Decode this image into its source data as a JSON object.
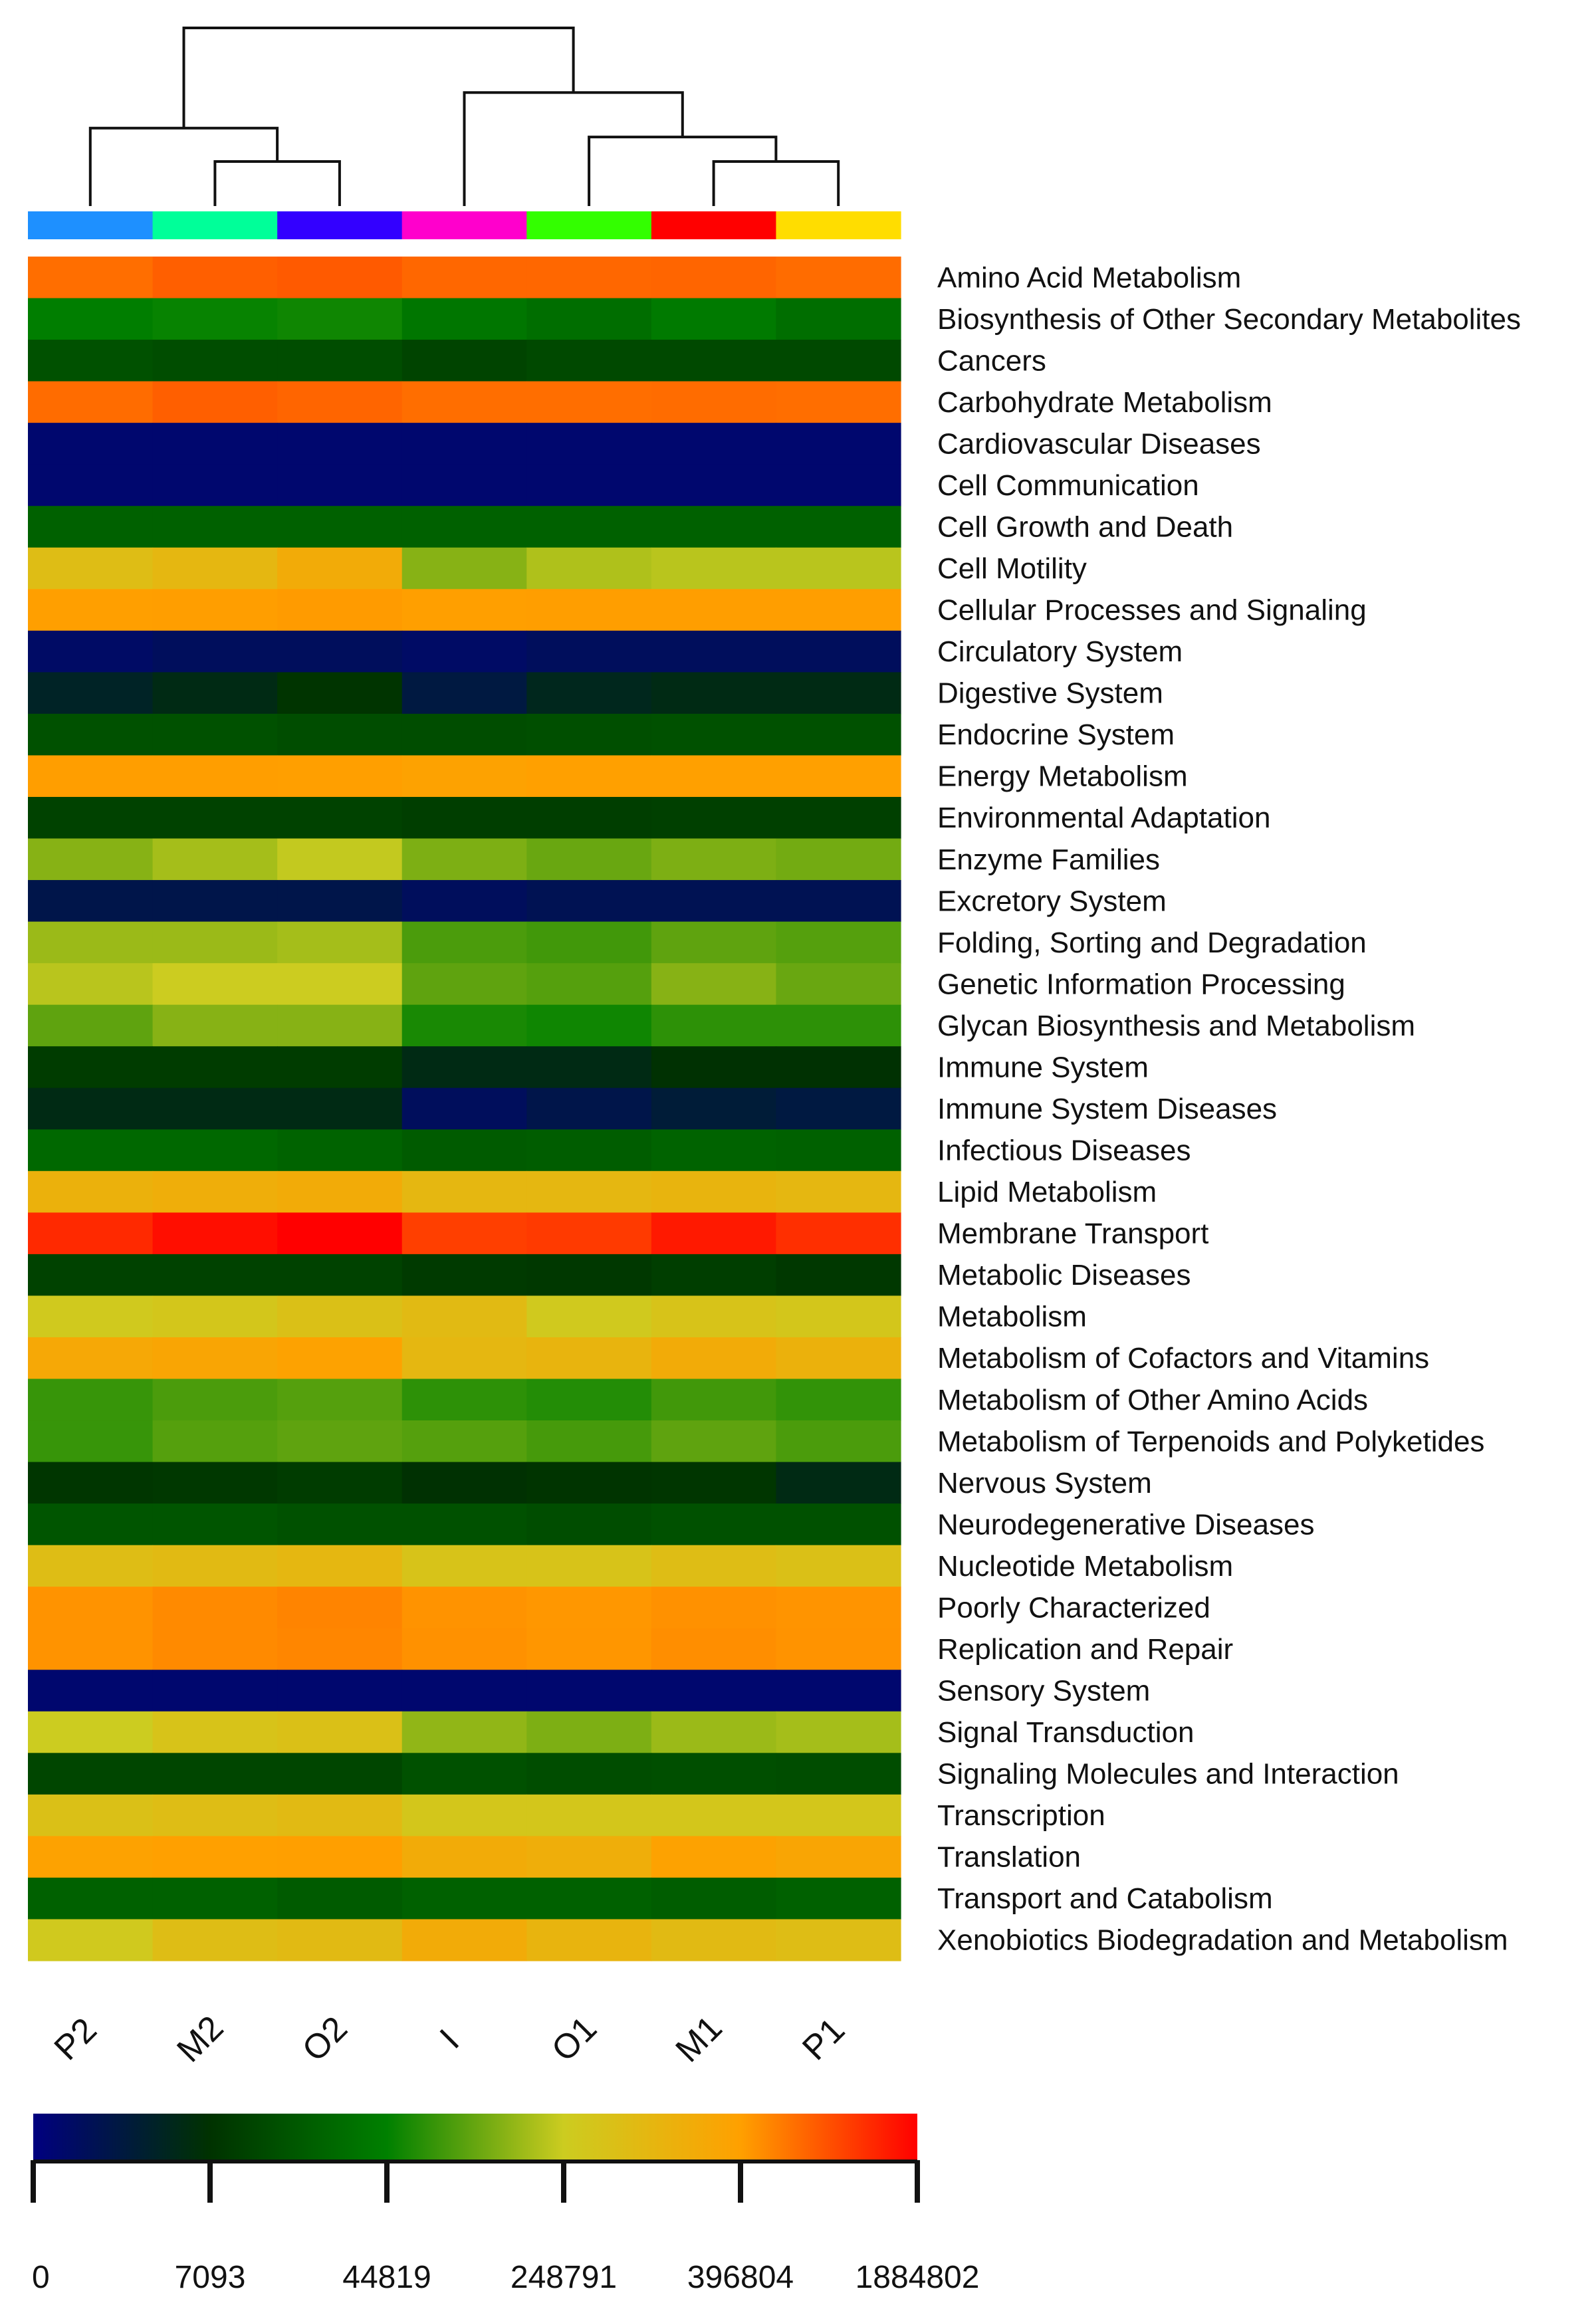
{
  "chart_data": {
    "type": "heatmap",
    "title": "",
    "xlabel": "",
    "ylabel": "",
    "columns": [
      "P2",
      "M2",
      "O2",
      "I",
      "O1",
      "M1",
      "P1"
    ],
    "column_group_colors": [
      "#1e90ff",
      "#00ff99",
      "#3300ff",
      "#ff00cc",
      "#33ff00",
      "#ff0000",
      "#ffdd00"
    ],
    "rows": [
      "Amino Acid Metabolism",
      "Biosynthesis of Other Secondary Metabolites",
      "Cancers",
      "Carbohydrate Metabolism",
      "Cardiovascular Diseases",
      "Cell Communication",
      "Cell Growth and Death",
      "Cell Motility",
      "Cellular Processes and Signaling",
      "Circulatory System",
      "Digestive System",
      "Endocrine System",
      "Energy Metabolism",
      "Environmental Adaptation",
      "Enzyme Families",
      "Excretory System",
      "Folding, Sorting and Degradation",
      "Genetic Information Processing",
      "Glycan Biosynthesis and Metabolism",
      "Immune System",
      "Immune System Diseases",
      "Infectious Diseases",
      "Lipid Metabolism",
      "Membrane Transport",
      "Metabolic Diseases",
      "Metabolism",
      "Metabolism of Cofactors and Vitamins",
      "Metabolism of Other Amino Acids",
      "Metabolism of Terpenoids and Polyketides",
      "Nervous System",
      "Neurodegenerative Diseases",
      "Nucleotide Metabolism",
      "Poorly Characterized",
      "Replication and Repair",
      "Sensory System",
      "Signal Transduction",
      "Signaling Molecules and Interaction",
      "Transcription",
      "Translation",
      "Transport and Catabolism",
      "Xenobiotics Biodegradation and Metabolism"
    ],
    "values": [
      [
        860000,
        1000000,
        1050000,
        930000,
        930000,
        950000,
        880000
      ],
      [
        44000,
        52000,
        60000,
        40000,
        36000,
        42000,
        36000
      ],
      [
        22000,
        20000,
        20000,
        16000,
        18000,
        18000,
        18000
      ],
      [
        880000,
        1000000,
        950000,
        860000,
        860000,
        880000,
        860000
      ],
      [
        1000,
        1000,
        1000,
        1000,
        1000,
        1000,
        1000
      ],
      [
        1000,
        1000,
        1000,
        1000,
        1000,
        1000,
        1000
      ],
      [
        30000,
        30000,
        30000,
        30000,
        30000,
        30000,
        30000
      ],
      [
        300000,
        320000,
        360000,
        180000,
        220000,
        230000,
        230000
      ],
      [
        410000,
        420000,
        440000,
        410000,
        420000,
        420000,
        420000
      ],
      [
        1500,
        2000,
        2000,
        1500,
        2000,
        2000,
        2000
      ],
      [
        5000,
        6000,
        8000,
        3500,
        5500,
        6000,
        6000
      ],
      [
        22000,
        22000,
        20000,
        20000,
        21000,
        22000,
        22000
      ],
      [
        420000,
        420000,
        410000,
        390000,
        400000,
        400000,
        400000
      ],
      [
        15000,
        15000,
        15000,
        13000,
        13000,
        14000,
        14000
      ],
      [
        180000,
        210000,
        240000,
        170000,
        150000,
        170000,
        160000
      ],
      [
        3000,
        3000,
        3000,
        2000,
        2500,
        2500,
        2500
      ],
      [
        200000,
        200000,
        210000,
        120000,
        110000,
        140000,
        130000
      ],
      [
        230000,
        250000,
        250000,
        140000,
        130000,
        180000,
        150000
      ],
      [
        140000,
        180000,
        180000,
        70000,
        60000,
        90000,
        90000
      ],
      [
        12000,
        12000,
        12000,
        6000,
        6000,
        7000,
        7000
      ],
      [
        6000,
        6000,
        6000,
        2000,
        3000,
        4000,
        3500
      ],
      [
        33000,
        33000,
        31000,
        27000,
        28000,
        31000,
        30000
      ],
      [
        340000,
        350000,
        360000,
        320000,
        320000,
        330000,
        320000
      ],
      [
        1500000,
        1750000,
        1884802,
        1300000,
        1350000,
        1650000,
        1450000
      ],
      [
        15000,
        15000,
        15000,
        11000,
        10000,
        13000,
        10000
      ],
      [
        260000,
        270000,
        290000,
        310000,
        260000,
        280000,
        270000
      ],
      [
        370000,
        380000,
        390000,
        320000,
        330000,
        360000,
        340000
      ],
      [
        100000,
        120000,
        130000,
        90000,
        80000,
        110000,
        95000
      ],
      [
        100000,
        130000,
        140000,
        130000,
        115000,
        140000,
        120000
      ],
      [
        9000,
        10000,
        12000,
        7000,
        8000,
        9000,
        6000
      ],
      [
        24000,
        24000,
        22000,
        22000,
        20000,
        22000,
        22000
      ],
      [
        300000,
        310000,
        320000,
        280000,
        280000,
        300000,
        290000
      ],
      [
        520000,
        600000,
        660000,
        520000,
        480000,
        540000,
        510000
      ],
      [
        520000,
        600000,
        640000,
        540000,
        490000,
        560000,
        520000
      ],
      [
        1000,
        1000,
        1000,
        1000,
        1000,
        1000,
        1000
      ],
      [
        250000,
        280000,
        290000,
        190000,
        170000,
        200000,
        210000
      ],
      [
        17000,
        17000,
        17000,
        22000,
        20000,
        21000,
        20000
      ],
      [
        290000,
        300000,
        310000,
        270000,
        270000,
        270000,
        270000
      ],
      [
        390000,
        400000,
        410000,
        360000,
        350000,
        390000,
        380000
      ],
      [
        30000,
        30000,
        27000,
        30000,
        30000,
        28000,
        30000
      ],
      [
        260000,
        300000,
        310000,
        360000,
        330000,
        310000,
        300000
      ]
    ],
    "colorbar": {
      "ticks": [
        "0",
        "7093",
        "44819",
        "248791",
        "396804",
        "1884802"
      ],
      "tick_values": [
        0,
        7093,
        44819,
        248791,
        396804,
        1884802
      ],
      "colors": [
        "#000080",
        "#003200",
        "#008000",
        "#cccc20",
        "#ffa000",
        "#ff0000"
      ]
    },
    "dendrogram": {
      "leaf_order": [
        "P2",
        "M2",
        "O2",
        "I",
        "O1",
        "M1",
        "P1"
      ],
      "merges": [
        {
          "a": "M2",
          "b": "O2",
          "height": 1.0
        },
        {
          "a": "M1",
          "b": "P1",
          "height": 1.0
        },
        {
          "a": "P2",
          "b": "M2+O2",
          "height": 1.75
        },
        {
          "a": "O1",
          "b": "M1+P1",
          "height": 1.55
        },
        {
          "a": "I",
          "b": "O1+M1+P1",
          "height": 2.55
        },
        {
          "a": "P2+M2+O2",
          "b": "I+O1+M1+P1",
          "height": 4.0
        }
      ]
    }
  }
}
